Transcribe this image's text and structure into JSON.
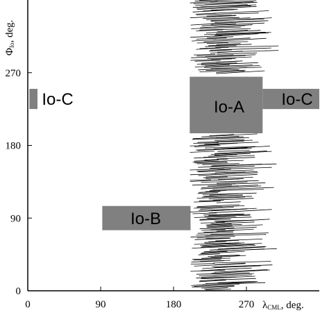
{
  "chart_data": {
    "type": "scatter",
    "xlabel": {
      "symbol": "λ",
      "sub": "CML",
      "unit": ", deg."
    },
    "ylabel": {
      "symbol": "Φ",
      "sub": "Io",
      "unit": ", deg."
    },
    "xlim": [
      0,
      360
    ],
    "ylim": [
      0,
      360
    ],
    "xticks": [
      0,
      90,
      180,
      270
    ],
    "yticks": [
      0,
      90,
      180,
      270
    ],
    "grid": false,
    "fill_color": "#808080",
    "regions": [
      {
        "label": "Io-A",
        "x": [
          200,
          290
        ],
        "y": [
          195,
          265
        ]
      },
      {
        "label": "Io-B",
        "x": [
          92,
          201
        ],
        "y": [
          75,
          105
        ]
      },
      {
        "label": "Io-C",
        "x": [
          290,
          360
        ],
        "y": [
          225,
          250
        ]
      },
      {
        "label": "Io-C",
        "x": [
          2,
          12
        ],
        "y": [
          225,
          250
        ]
      }
    ],
    "events_note": ""
  }
}
